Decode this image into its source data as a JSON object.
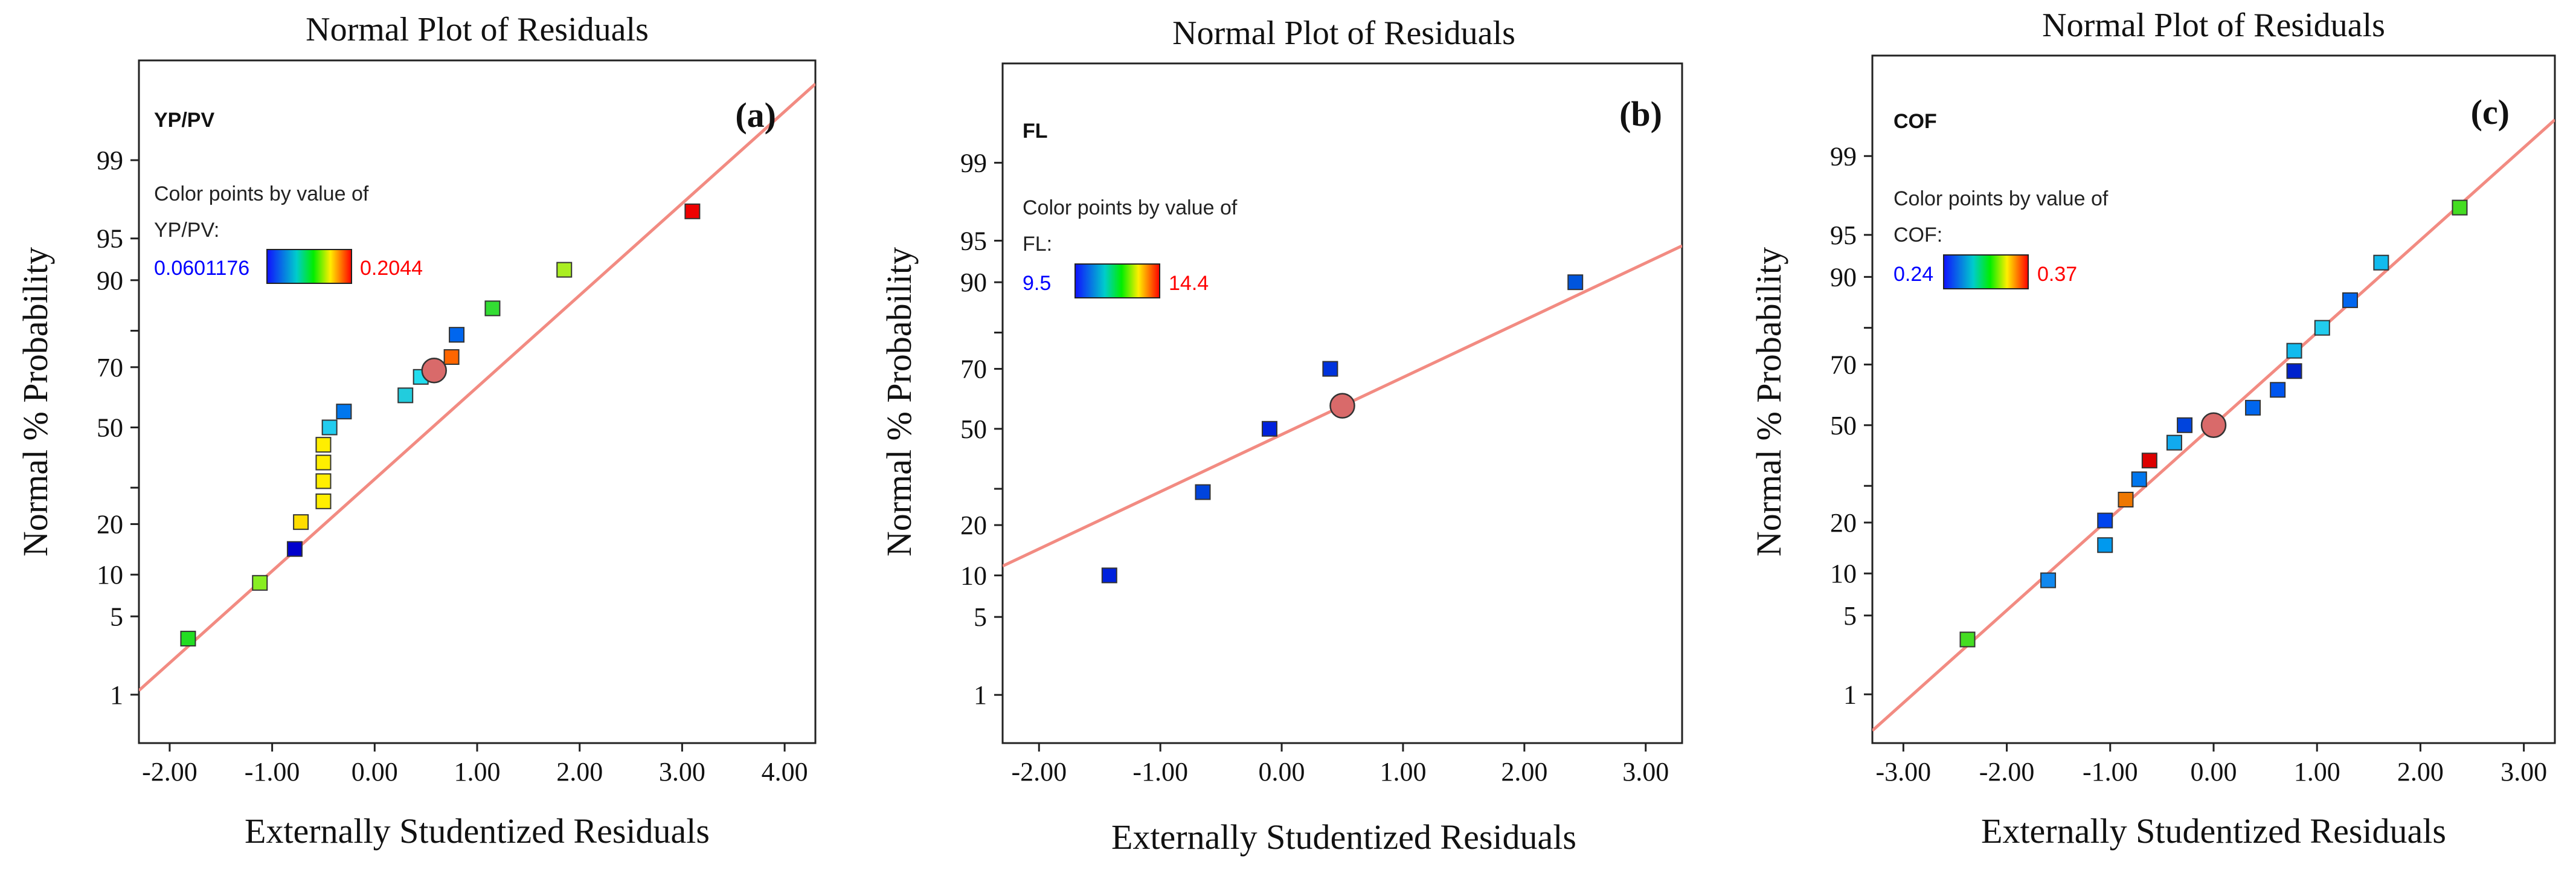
{
  "figure": {
    "panels": [
      {
        "id": "a",
        "label": "(a)"
      },
      {
        "id": "b",
        "label": "(b)"
      },
      {
        "id": "c",
        "label": "(c)"
      }
    ]
  },
  "colors": {
    "fit_line": "#f28b82",
    "marker_center": "#d96a6a",
    "legend_low_text": "#0000ff",
    "legend_high_text": "#ff0000"
  },
  "chart_data": [
    {
      "type": "scatter",
      "panel_label": "(a)",
      "title": "Normal Plot of Residuals",
      "xlabel": "Externally Studentized Residuals",
      "ylabel": "Normal % Probability",
      "response": "YP/PV",
      "legend_caption_line1": "Color points by value of",
      "legend_caption_line2": "YP/PV:",
      "legend_min": "0.0601176",
      "legend_max": "0.2044",
      "xlim": [
        -2.3,
        4.3
      ],
      "ylim_prob": [
        0.3,
        99.93
      ],
      "xticks": [
        -2,
        -1,
        0,
        1,
        2,
        3,
        4
      ],
      "xtick_labels": [
        "-2.00",
        "-1.00",
        "0.00",
        "1.00",
        "2.00",
        "3.00",
        "4.00"
      ],
      "yticks": [
        1,
        5,
        10,
        20,
        30,
        50,
        70,
        80,
        90,
        95,
        99
      ],
      "ytick_labels": [
        "1",
        "5",
        "10",
        "20",
        "",
        "50",
        "70",
        "",
        "90",
        "95",
        "99"
      ],
      "line": {
        "slope": 0.8,
        "intercept": -0.45
      },
      "center_point": {
        "x": 0.58,
        "y": 69
      },
      "points": [
        {
          "x": -1.82,
          "y": 3.3,
          "color": "#22dd22"
        },
        {
          "x": -1.12,
          "y": 8.8,
          "color": "#88ee22"
        },
        {
          "x": -0.78,
          "y": 14.5,
          "color": "#0000cc"
        },
        {
          "x": -0.72,
          "y": 20.5,
          "color": "#ffdd00"
        },
        {
          "x": -0.5,
          "y": 26,
          "color": "#ffee00"
        },
        {
          "x": -0.5,
          "y": 32,
          "color": "#ffee00"
        },
        {
          "x": -0.5,
          "y": 38,
          "color": "#ffee00"
        },
        {
          "x": -0.5,
          "y": 44,
          "color": "#ffee00"
        },
        {
          "x": -0.44,
          "y": 50,
          "color": "#22ccee"
        },
        {
          "x": -0.3,
          "y": 55.5,
          "color": "#0077ee"
        },
        {
          "x": 0.3,
          "y": 61,
          "color": "#22ccdd"
        },
        {
          "x": 0.45,
          "y": 67,
          "color": "#22ddee"
        },
        {
          "x": 0.75,
          "y": 73,
          "color": "#ff6600"
        },
        {
          "x": 0.8,
          "y": 79,
          "color": "#0066ee"
        },
        {
          "x": 1.15,
          "y": 85,
          "color": "#33dd33"
        },
        {
          "x": 1.85,
          "y": 91.5,
          "color": "#aaee22"
        },
        {
          "x": 3.1,
          "y": 97,
          "color": "#ee0000"
        }
      ]
    },
    {
      "type": "scatter",
      "panel_label": "(b)",
      "title": "Normal Plot of Residuals",
      "xlabel": "Externally Studentized Residuals",
      "ylabel": "Normal % Probability",
      "response": "FL",
      "legend_caption_line1": "Color points by value of",
      "legend_caption_line2": "FL:",
      "legend_min": "9.5",
      "legend_max": "14.4",
      "xlim": [
        -2.3,
        3.3
      ],
      "ylim_prob": [
        0.3,
        99.93
      ],
      "xticks": [
        -2,
        -1,
        0,
        1,
        2,
        3
      ],
      "xtick_labels": [
        "-2.00",
        "-1.00",
        "0.00",
        "1.00",
        "2.00",
        "3.00"
      ],
      "yticks": [
        1,
        5,
        10,
        20,
        30,
        50,
        70,
        80,
        90,
        95,
        99
      ],
      "ytick_labels": [
        "1",
        "5",
        "10",
        "20",
        "",
        "50",
        "70",
        "",
        "90",
        "95",
        "99"
      ],
      "line": {
        "slope": 0.5,
        "intercept": -0.05
      },
      "center_point": {
        "x": 0.5,
        "y": 58
      },
      "points": [
        {
          "x": -1.42,
          "y": 10,
          "color": "#0022dd"
        },
        {
          "x": -0.65,
          "y": 29,
          "color": "#0044dd"
        },
        {
          "x": -0.1,
          "y": 50,
          "color": "#0022dd"
        },
        {
          "x": 0.4,
          "y": 70,
          "color": "#0033dd"
        },
        {
          "x": 2.42,
          "y": 90,
          "color": "#0055dd"
        }
      ]
    },
    {
      "type": "scatter",
      "panel_label": "(c)",
      "title": "Normal Plot of Residuals",
      "xlabel": "Externally Studentized Residuals",
      "ylabel": "Normal % Probability",
      "response": "COF",
      "legend_caption_line1": "Color points by value of",
      "legend_caption_line2": "COF:",
      "legend_min": "0.24",
      "legend_max": "0.37",
      "xlim": [
        -3.3,
        3.3
      ],
      "ylim_prob": [
        0.3,
        99.93
      ],
      "xticks": [
        -3,
        -2,
        -1,
        0,
        1,
        2,
        3
      ],
      "xtick_labels": [
        "-3.00",
        "-2.00",
        "-1.00",
        "0.00",
        "1.00",
        "2.00",
        "3.00"
      ],
      "yticks": [
        1,
        5,
        10,
        20,
        30,
        50,
        70,
        80,
        90,
        95,
        99
      ],
      "ytick_labels": [
        "1",
        "5",
        "10",
        "20",
        "",
        "50",
        "70",
        "",
        "90",
        "95",
        "99"
      ],
      "line": {
        "slope": 0.8,
        "intercept": 0.0
      },
      "center_point": {
        "x": 0.0,
        "y": 50
      },
      "points": [
        {
          "x": -2.38,
          "y": 3.2,
          "color": "#44dd22"
        },
        {
          "x": -1.6,
          "y": 9,
          "color": "#1188ee"
        },
        {
          "x": -1.05,
          "y": 15,
          "color": "#0099ee"
        },
        {
          "x": -1.05,
          "y": 20.5,
          "color": "#0044ee"
        },
        {
          "x": -0.85,
          "y": 26,
          "color": "#ee7700"
        },
        {
          "x": -0.72,
          "y": 32,
          "color": "#0077ee"
        },
        {
          "x": -0.62,
          "y": 38,
          "color": "#dd0000"
        },
        {
          "x": -0.38,
          "y": 44,
          "color": "#11aaee"
        },
        {
          "x": -0.28,
          "y": 50,
          "color": "#0044dd"
        },
        {
          "x": 0.38,
          "y": 56,
          "color": "#0066ee"
        },
        {
          "x": 0.62,
          "y": 62,
          "color": "#0055ee"
        },
        {
          "x": 0.78,
          "y": 68,
          "color": "#0022cc"
        },
        {
          "x": 0.78,
          "y": 74,
          "color": "#11bbee"
        },
        {
          "x": 1.05,
          "y": 80,
          "color": "#22ccee"
        },
        {
          "x": 1.32,
          "y": 86,
          "color": "#0066ee"
        },
        {
          "x": 1.62,
          "y": 92,
          "color": "#11bbee"
        },
        {
          "x": 2.38,
          "y": 97,
          "color": "#44dd22"
        }
      ]
    }
  ]
}
